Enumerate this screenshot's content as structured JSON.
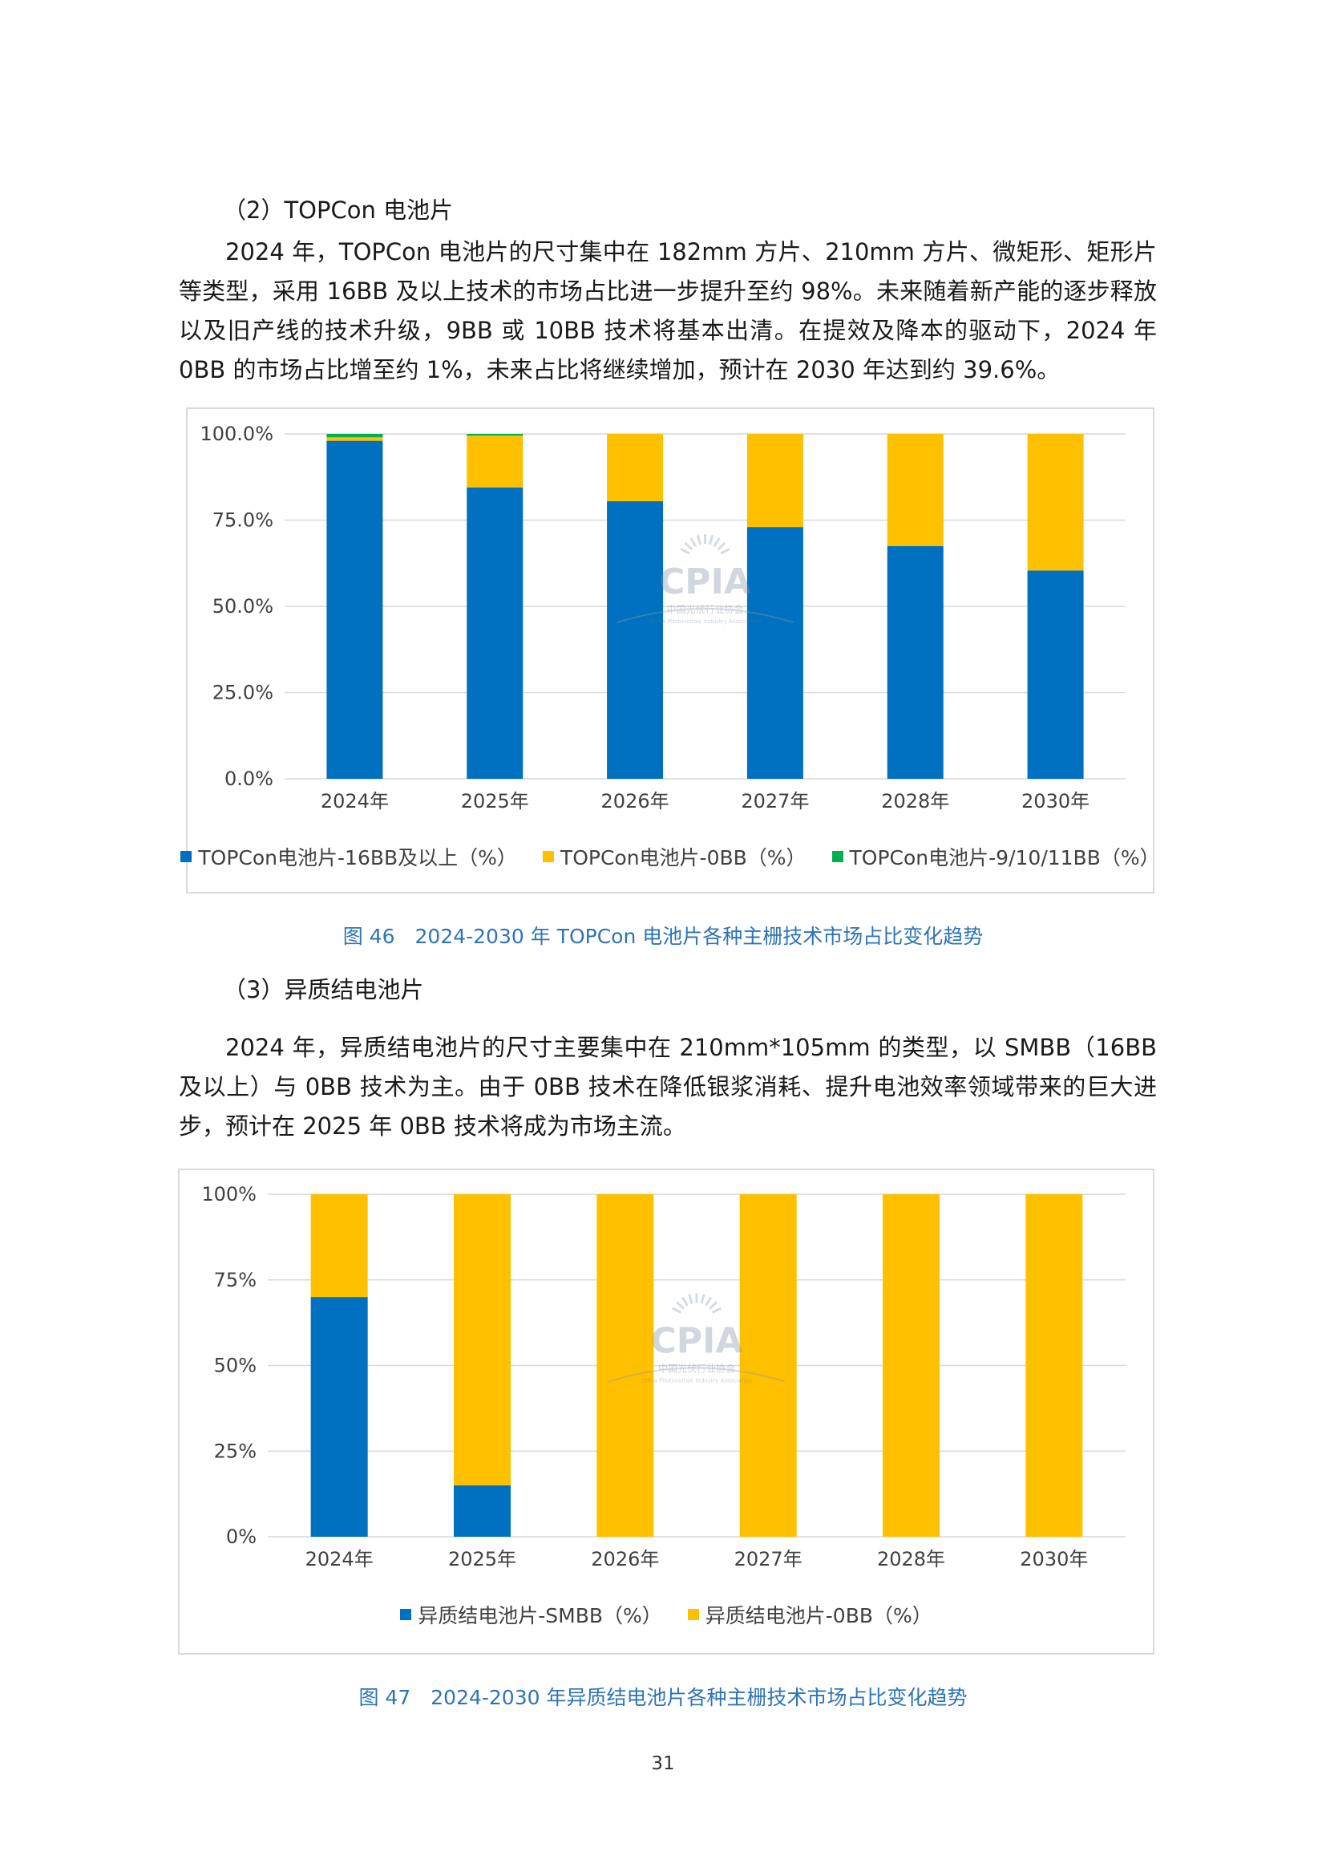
{
  "section_topcon": {
    "heading": "（2）TOPCon 电池片",
    "paragraph": "2024 年，TOPCon 电池片的尺寸集中在 182mm 方片、210mm 方片、微矩形、矩形片等类型，采用 16BB 及以上技术的市场占比进一步提升至约 98%。未来随着新产能的逐步释放以及旧产线的技术升级，9BB 或 10BB 技术将基本出清。在提效及降本的驱动下，2024 年 0BB 的市场占比增至约 1%，未来占比将继续增加，预计在 2030 年达到约 39.6%。"
  },
  "figure46": {
    "caption": "图 46　2024-2030 年 TOPCon 电池片各种主栅技术市场占比变化趋势"
  },
  "section_hjt": {
    "heading": "（3）异质结电池片",
    "paragraph": "2024 年，异质结电池片的尺寸主要集中在 210mm*105mm 的类型，以 SMBB（16BB 及以上）与 0BB 技术为主。由于 0BB 技术在降低银浆消耗、提升电池效率领域带来的巨大进步，预计在 2025 年 0BB 技术将成为市场主流。"
  },
  "figure47": {
    "caption": "图 47　2024-2030 年异质结电池片各种主栅技术市场占比变化趋势"
  },
  "watermark": {
    "logo_text": "CPIA",
    "org_name": "中国光伏行业协会",
    "org_name_en": "China Photovoltaic Industry Association"
  },
  "page_number": "31",
  "chart_data": [
    {
      "type": "bar",
      "stacked": true,
      "categories": [
        "2024年",
        "2025年",
        "2026年",
        "2027年",
        "2028年",
        "2030年"
      ],
      "series": [
        {
          "name": "TOPCon电池片-16BB及以上（%）",
          "values": [
            98,
            84.5,
            80.5,
            73,
            67.5,
            60.4
          ],
          "color": "#0070c0"
        },
        {
          "name": "TOPCon电池片-0BB（%）",
          "values": [
            1,
            15,
            19.5,
            27,
            32.5,
            39.6
          ],
          "color": "#ffc000"
        },
        {
          "name": "TOPCon电池片-9/10/11BB（%）",
          "values": [
            1,
            0.5,
            0,
            0,
            0,
            0
          ],
          "color": "#00b050"
        }
      ],
      "ylim": [
        0,
        100
      ],
      "yticks": [
        "0.0%",
        "25.0%",
        "50.0%",
        "75.0%",
        "100.0%"
      ],
      "grid": true,
      "legend": "bottom"
    },
    {
      "type": "bar",
      "stacked": true,
      "categories": [
        "2024年",
        "2025年",
        "2026年",
        "2027年",
        "2028年",
        "2030年"
      ],
      "series": [
        {
          "name": "异质结电池片-SMBB（%）",
          "values": [
            70,
            15,
            0,
            0,
            0,
            0
          ],
          "color": "#0070c0"
        },
        {
          "name": "异质结电池片-0BB（%）",
          "values": [
            30,
            85,
            100,
            100,
            100,
            100
          ],
          "color": "#ffc000"
        }
      ],
      "ylim": [
        0,
        100
      ],
      "yticks": [
        "0%",
        "25%",
        "50%",
        "75%",
        "100%"
      ],
      "grid": true,
      "legend": "bottom"
    }
  ]
}
